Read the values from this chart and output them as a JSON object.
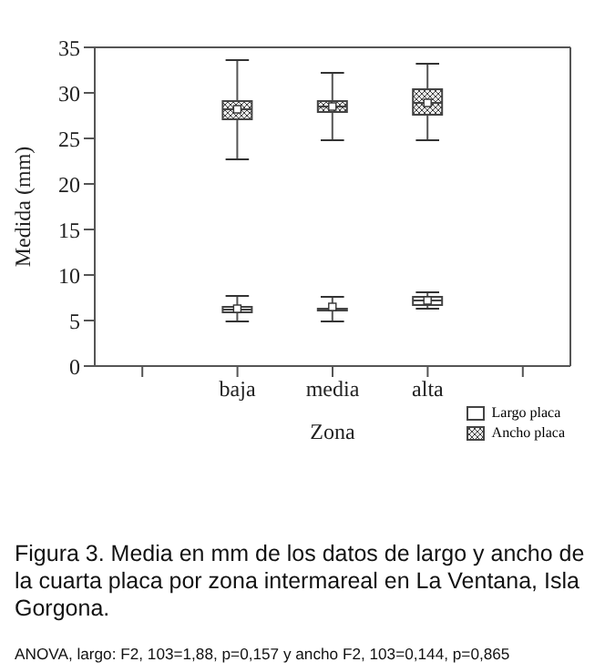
{
  "chart_data": {
    "type": "box",
    "title": "Figura 3. Media en mm de los datos de largo y ancho de la cuarta placa por zona intermareal en La Ventana, Isla Gorgona.",
    "xlabel": "Zona",
    "ylabel": "Medida (mm)",
    "categories": [
      null,
      "baja",
      "media",
      "alta",
      null
    ],
    "ylim": [
      0,
      35
    ],
    "yticks": [
      0,
      5,
      10,
      15,
      20,
      25,
      30,
      35
    ],
    "grid": false,
    "legend": "bottom right",
    "annotations": [
      "ANOVA, largo: F2, 103=1,88, p=0,157 y ancho F2, 103=0,144, p=0,865"
    ],
    "series": [
      {
        "name": "Largo placa",
        "color": "#ffffff",
        "boxes": [
          null,
          {
            "low": 4.9,
            "q1": 5.9,
            "median": 6.2,
            "q3": 6.5,
            "high": 7.7,
            "mean": 6.3
          },
          {
            "low": 4.9,
            "q1": 6.1,
            "median": 6.2,
            "q3": 6.3,
            "high": 7.6,
            "mean": 6.5
          },
          {
            "low": 6.3,
            "q1": 6.7,
            "median": 7.2,
            "q3": 7.6,
            "high": 8.1,
            "mean": 7.2
          },
          null
        ]
      },
      {
        "name": "Ancho placa",
        "color": "#444444",
        "boxes": [
          null,
          {
            "low": 22.7,
            "q1": 27.1,
            "median": 28.2,
            "q3": 29.1,
            "high": 33.6,
            "mean": 28.2
          },
          {
            "low": 24.8,
            "q1": 27.9,
            "median": 28.5,
            "q3": 29.1,
            "high": 32.2,
            "mean": 28.5
          },
          {
            "low": 24.8,
            "q1": 27.6,
            "median": 28.9,
            "q3": 30.4,
            "high": 33.2,
            "mean": 28.9
          },
          null
        ]
      }
    ]
  }
}
